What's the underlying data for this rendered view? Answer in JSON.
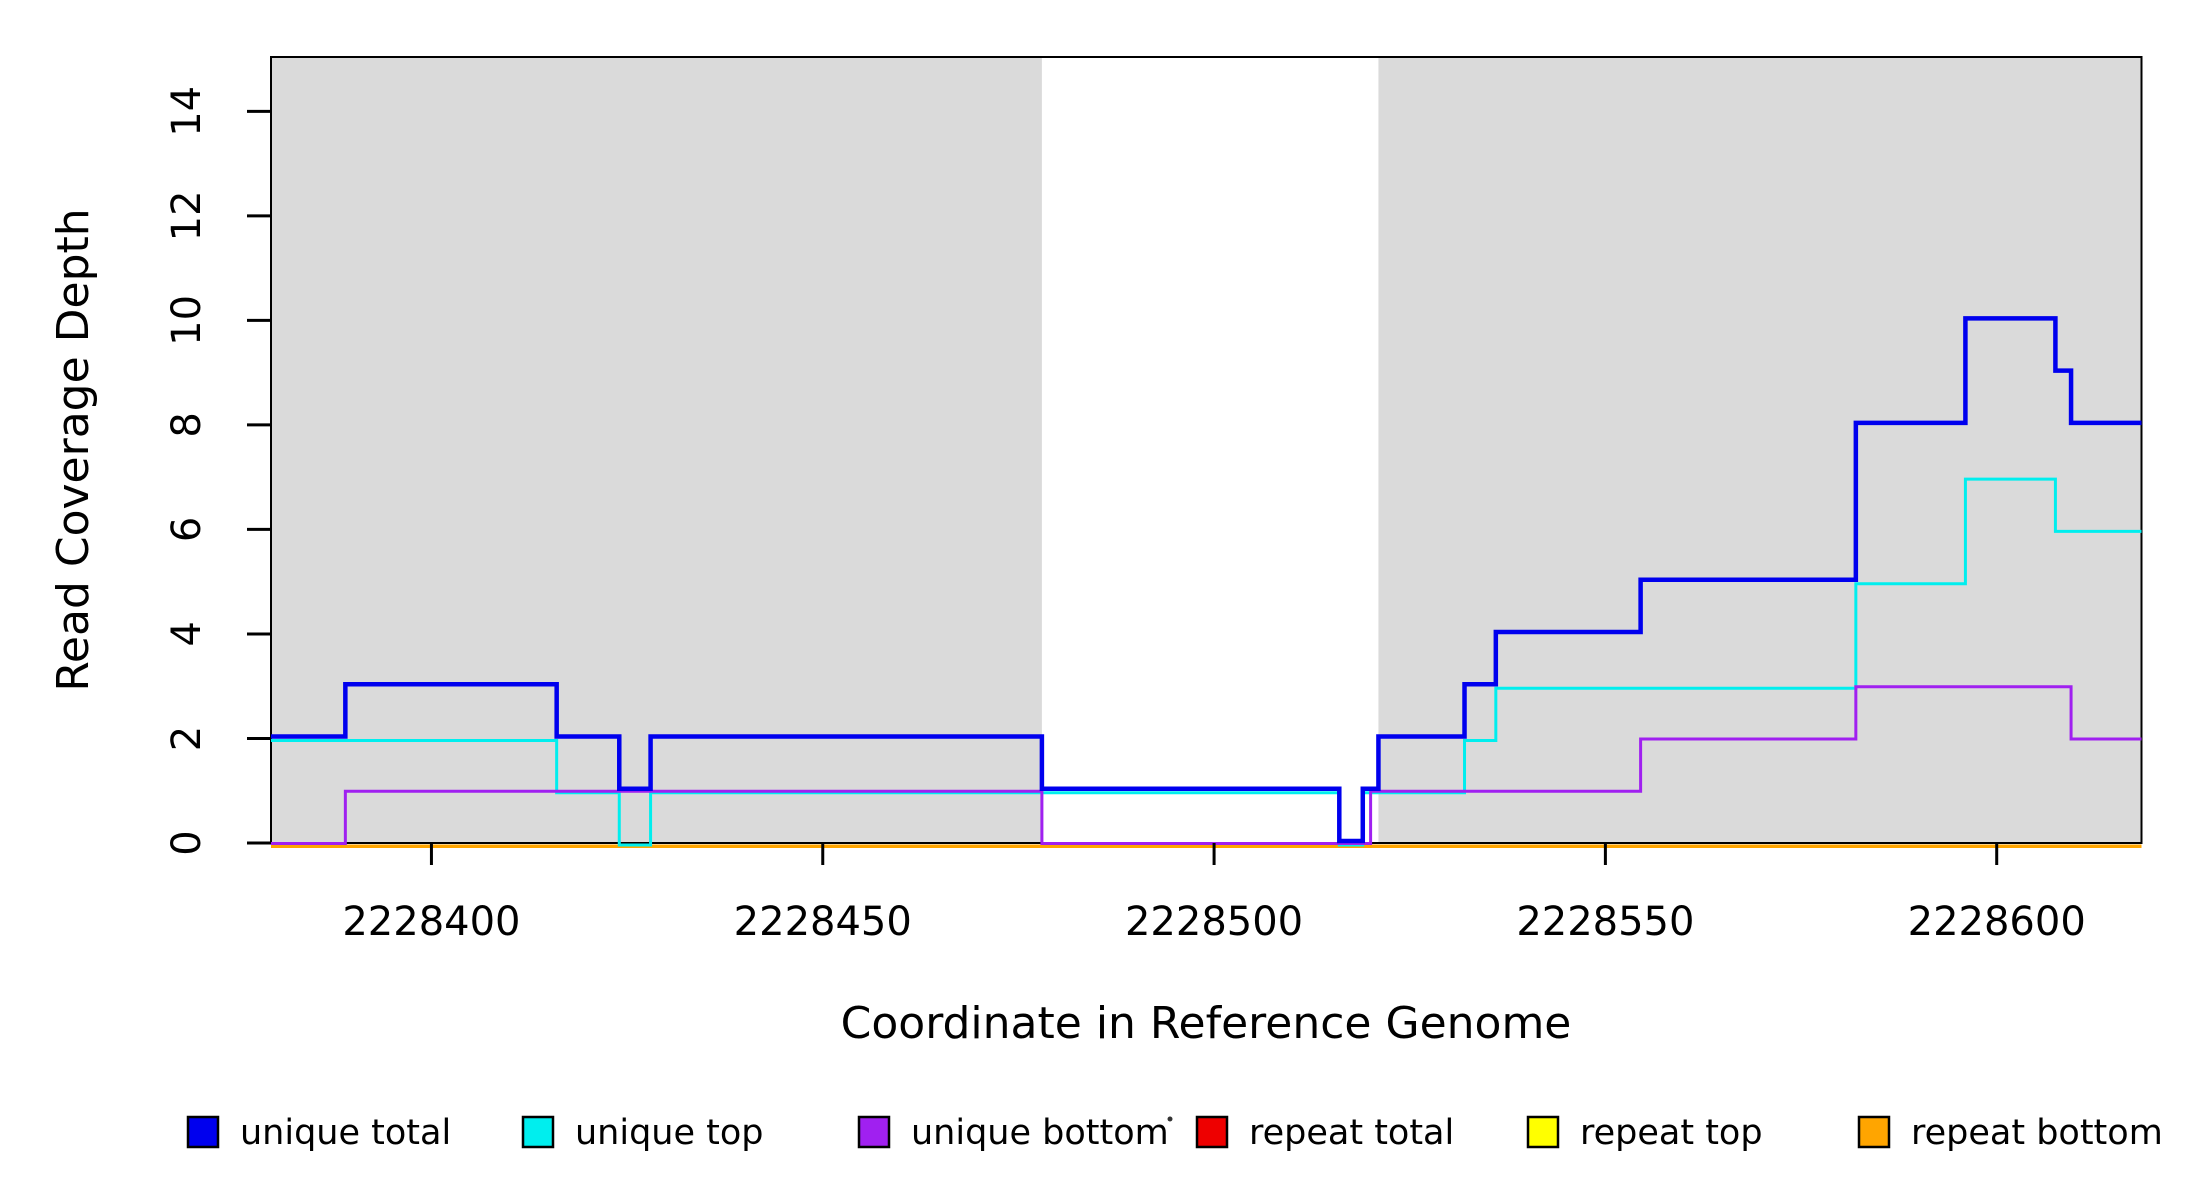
{
  "chart_data": {
    "type": "line",
    "subtype": "step-after-coverage-plot",
    "title": "",
    "xlabel": "Coordinate in Reference Genome",
    "ylabel": "Read Coverage Depth",
    "x_axis": {
      "min": 2228379.5,
      "max": 2228618.5,
      "ticks": [
        2228400,
        2228450,
        2228500,
        2228550,
        2228600
      ],
      "tick_labels": [
        "2228400",
        "2228450",
        "2228500",
        "2228550",
        "2228600"
      ]
    },
    "y_axis": {
      "min": 0,
      "max": 15.04,
      "ticks": [
        0,
        2,
        4,
        6,
        8,
        10,
        12,
        14
      ],
      "tick_labels": [
        "0",
        "2",
        "4",
        "6",
        "8",
        "10",
        "12",
        "14"
      ],
      "tick_labels_rotated": true
    },
    "grid": false,
    "background_color": "#ffffff",
    "shaded_regions": [
      {
        "name": "unique-region-left",
        "start": 2228379.5,
        "end": 2228478,
        "color": "#dadada"
      },
      {
        "name": "unique-region-right",
        "start": 2228521,
        "end": 2228618.5,
        "color": "#dadada"
      }
    ],
    "series": [
      {
        "name": "repeat total",
        "color": "#EE0000",
        "steps": [
          [
            2228379.5,
            0
          ]
        ],
        "end_x": 2228618.5
      },
      {
        "name": "repeat top",
        "color": "#FFFF00",
        "steps": [
          [
            2228379.5,
            0
          ]
        ],
        "end_x": 2228618.5
      },
      {
        "name": "repeat bottom",
        "color": "#FFA500",
        "steps": [
          [
            2228379.5,
            0
          ]
        ],
        "end_x": 2228618.5
      },
      {
        "name": "unique top",
        "color": "#00EEEE",
        "steps": [
          [
            2228379.5,
            2
          ],
          [
            2228416,
            1
          ],
          [
            2228424,
            0
          ],
          [
            2228428,
            1
          ],
          [
            2228516,
            0
          ],
          [
            2228519,
            1
          ],
          [
            2228532,
            2
          ],
          [
            2228536,
            3
          ],
          [
            2228582,
            5
          ],
          [
            2228596,
            7
          ],
          [
            2228607.5,
            6
          ]
        ],
        "end_x": 2228618.5
      },
      {
        "name": "unique bottom",
        "color": "#A020F0",
        "steps": [
          [
            2228379.5,
            0
          ],
          [
            2228389,
            1
          ],
          [
            2228478,
            0
          ],
          [
            2228520,
            1
          ],
          [
            2228554.5,
            2
          ],
          [
            2228582,
            3
          ],
          [
            2228609.5,
            2
          ]
        ],
        "end_x": 2228618.5
      },
      {
        "name": "unique total",
        "color": "#0000EE",
        "steps": [
          [
            2228379.5,
            2
          ],
          [
            2228389,
            3
          ],
          [
            2228416,
            2
          ],
          [
            2228424,
            1
          ],
          [
            2228428,
            2
          ],
          [
            2228478,
            1
          ],
          [
            2228516,
            0
          ],
          [
            2228519,
            1
          ],
          [
            2228521,
            2
          ],
          [
            2228532,
            3
          ],
          [
            2228536,
            4
          ],
          [
            2228554.5,
            5
          ],
          [
            2228582,
            8
          ],
          [
            2228596,
            10
          ],
          [
            2228607.5,
            9
          ],
          [
            2228609.5,
            8
          ]
        ],
        "end_x": 2228618.5
      }
    ],
    "legend": {
      "position": "bottom",
      "items": [
        {
          "label": "unique total",
          "color": "#0000EE"
        },
        {
          "label": "unique top",
          "color": "#00EEEE"
        },
        {
          "label": "unique bottom",
          "color": "#A020F0"
        },
        {
          "label": "repeat total",
          "color": "#EE0000"
        },
        {
          "label": "repeat top",
          "color": "#FFFF00"
        },
        {
          "label": "repeat bottom",
          "color": "#FFA500"
        }
      ]
    },
    "annotations": [
      {
        "name": "stray-dot",
        "text": "."
      }
    ]
  }
}
